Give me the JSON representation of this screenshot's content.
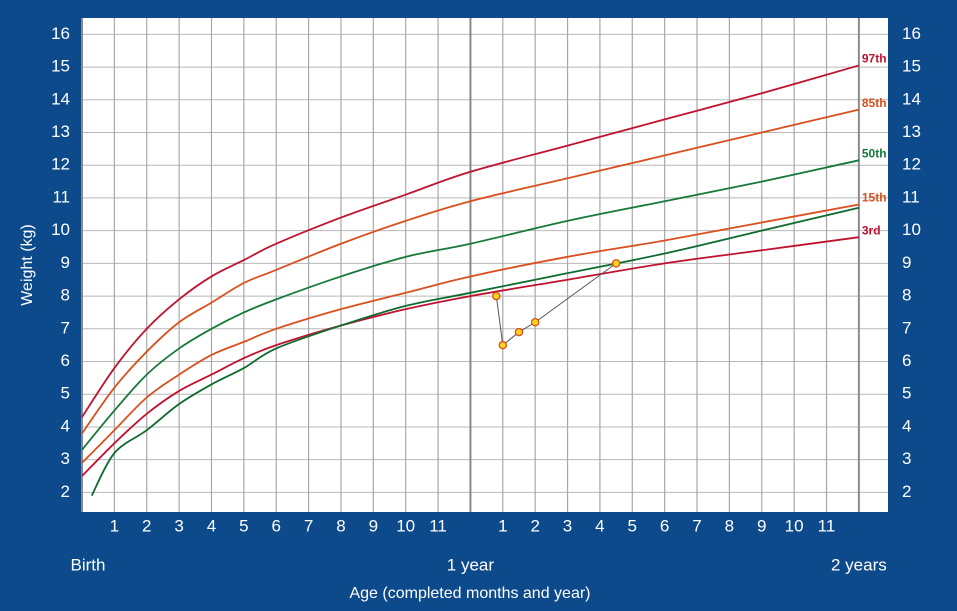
{
  "chart_data": {
    "type": "line",
    "y_axis_label": "Weight (kg)",
    "x_axis_label": "Age (completed months and year)",
    "xlim": [
      0,
      24.9
    ],
    "ylim": [
      1.4,
      16.5
    ],
    "yticks": [
      2,
      3,
      4,
      5,
      6,
      7,
      8,
      9,
      10,
      11,
      12,
      13,
      14,
      15,
      16
    ],
    "xticks": [
      1,
      2,
      3,
      4,
      5,
      6,
      7,
      8,
      9,
      10,
      11,
      {
        "value": 13,
        "label": "1"
      },
      {
        "value": 14,
        "label": "2"
      },
      {
        "value": 15,
        "label": "3"
      },
      {
        "value": 16,
        "label": "4"
      },
      {
        "value": 17,
        "label": "5"
      },
      {
        "value": 18,
        "label": "6"
      },
      {
        "value": 19,
        "label": "7"
      },
      {
        "value": 20,
        "label": "8"
      },
      {
        "value": 21,
        "label": "9"
      },
      {
        "value": 22,
        "label": "10"
      },
      {
        "value": 23,
        "label": "11"
      }
    ],
    "xticks_major": [
      {
        "value": 0,
        "label": "Birth"
      },
      {
        "value": 12,
        "label": "1 year"
      },
      {
        "value": 24,
        "label": "2 years"
      }
    ],
    "grid": true,
    "series": [
      {
        "name": "97th",
        "color": "#c0122f",
        "x": [
          0,
          1,
          2,
          3,
          4,
          5,
          6,
          8,
          10,
          12,
          15,
          18,
          21,
          24
        ],
        "values": [
          4.3,
          5.8,
          7.0,
          7.9,
          8.6,
          9.1,
          9.6,
          10.4,
          11.1,
          11.8,
          12.6,
          13.4,
          14.2,
          15.05
        ]
      },
      {
        "name": "85th",
        "color": "#d9501e",
        "x": [
          0,
          1,
          2,
          3,
          4,
          5,
          6,
          8,
          10,
          12,
          15,
          18,
          21,
          24
        ],
        "values": [
          3.8,
          5.2,
          6.3,
          7.2,
          7.8,
          8.4,
          8.8,
          9.6,
          10.3,
          10.9,
          11.6,
          12.3,
          13.0,
          13.7
        ]
      },
      {
        "name": "50th",
        "color": "#16793a",
        "x": [
          0,
          1,
          2,
          3,
          4,
          5,
          6,
          8,
          10,
          12,
          15,
          18,
          21,
          24
        ],
        "values": [
          3.3,
          4.5,
          5.6,
          6.4,
          7.0,
          7.5,
          7.9,
          8.6,
          9.2,
          9.6,
          10.3,
          10.9,
          11.5,
          12.15
        ]
      },
      {
        "name": "15th",
        "color": "#d9501e",
        "x": [
          0,
          1,
          2,
          3,
          4,
          5,
          6,
          8,
          10,
          12,
          15,
          18,
          21,
          24
        ],
        "values": [
          2.9,
          3.9,
          4.9,
          5.6,
          6.2,
          6.6,
          7.0,
          7.6,
          8.1,
          8.6,
          9.2,
          9.7,
          10.25,
          10.8
        ]
      },
      {
        "name": "3rd",
        "color": "#c0122f",
        "x": [
          0,
          1,
          2,
          3,
          4,
          5,
          6,
          8,
          10,
          12,
          15,
          18,
          21,
          24
        ],
        "values": [
          2.5,
          3.5,
          4.4,
          5.1,
          5.6,
          6.1,
          6.5,
          7.1,
          7.6,
          8.0,
          8.5,
          9.0,
          9.4,
          9.8
        ]
      },
      {
        "color": "#0f6b30",
        "x": [
          0.3,
          1,
          2,
          3,
          4,
          5,
          6,
          8,
          10,
          12,
          15,
          18,
          21,
          24
        ],
        "values": [
          1.9,
          3.2,
          3.9,
          4.7,
          5.3,
          5.8,
          6.4,
          7.1,
          7.7,
          8.1,
          8.7,
          9.3,
          10.0,
          10.7
        ]
      }
    ],
    "points": {
      "color": "#ffd21f",
      "edge": "#d9501e",
      "line": "#555555",
      "x": [
        12.8,
        13,
        13.5,
        14,
        16.5
      ],
      "values": [
        8.0,
        6.5,
        6.9,
        7.2,
        9.0
      ]
    }
  }
}
